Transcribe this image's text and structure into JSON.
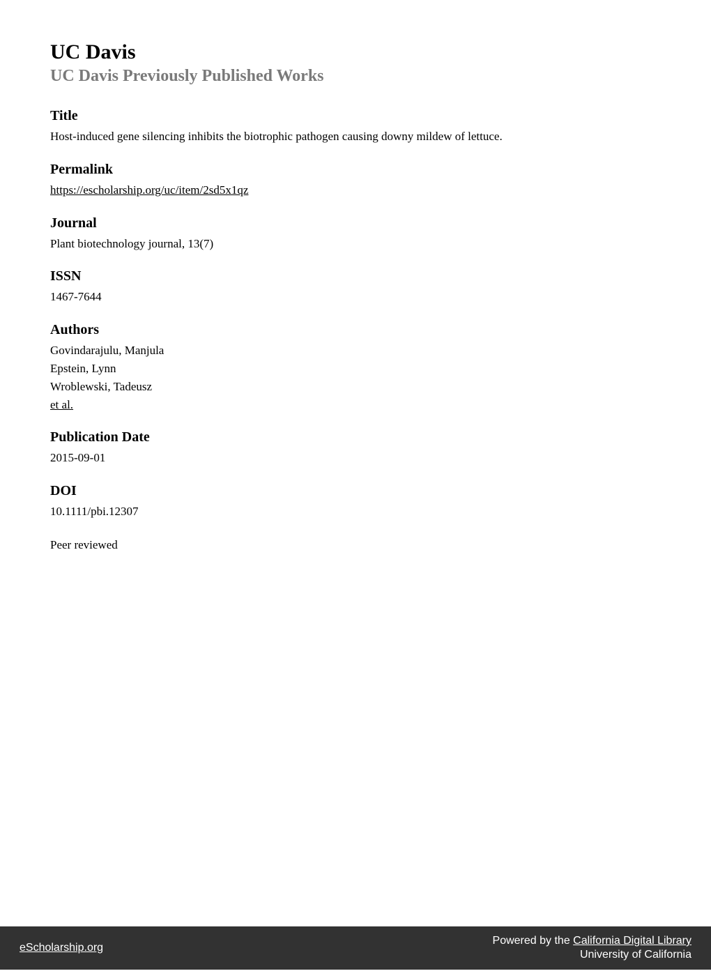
{
  "header": {
    "institution": "UC Davis",
    "series": "UC Davis Previously Published Works"
  },
  "sections": {
    "title": {
      "heading": "Title",
      "text": "Host-induced gene silencing inhibits the biotrophic pathogen causing downy mildew of lettuce."
    },
    "permalink": {
      "heading": "Permalink",
      "url": "https://escholarship.org/uc/item/2sd5x1qz"
    },
    "journal": {
      "heading": "Journal",
      "text": "Plant biotechnology journal, 13(7)"
    },
    "issn": {
      "heading": "ISSN",
      "text": "1467-7644"
    },
    "authors": {
      "heading": "Authors",
      "list": [
        "Govindarajulu, Manjula",
        "Epstein, Lynn",
        "Wroblewski, Tadeusz"
      ],
      "etAl": "et al."
    },
    "pubdate": {
      "heading": "Publication Date",
      "text": "2015-09-01"
    },
    "doi": {
      "heading": "DOI",
      "text": "10.1111/pbi.12307"
    },
    "peerReviewed": {
      "text": "Peer reviewed"
    }
  },
  "footer": {
    "left": "eScholarship.org",
    "rightPrefix": "Powered by the ",
    "rightLink": "California Digital Library",
    "rightLine2": "University of California"
  },
  "colors": {
    "background": "#ffffff",
    "textPrimary": "#000000",
    "textSecondary": "#7a7a7a",
    "footerBg": "#323232",
    "footerText": "#ffffff"
  },
  "typography": {
    "mainHeadingSize": 30,
    "subtitleSize": 24,
    "sectionHeadingSize": 20,
    "bodySize": 17,
    "footerSize": 16
  }
}
